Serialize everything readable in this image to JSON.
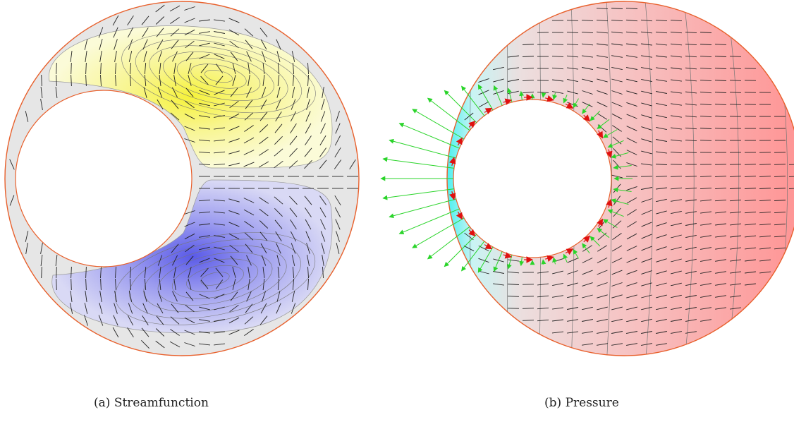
{
  "panels": [
    {
      "label": "(a)",
      "caption": "Streamfunction"
    },
    {
      "label": "(b)",
      "caption": "Pressure"
    }
  ],
  "colors": {
    "boundary": "#e8602c",
    "background_fill": "#e6e6e6",
    "streamfunction_positive": "#f5f03a",
    "streamfunction_negative": "#5a5ae6",
    "pressure_high": "#ff8f8f",
    "pressure_low": "#3ff0f0",
    "normal_force_arrows": "#2ad42a",
    "shear_force_arrows": "#e01010",
    "field_glyphs": "#222222"
  }
}
